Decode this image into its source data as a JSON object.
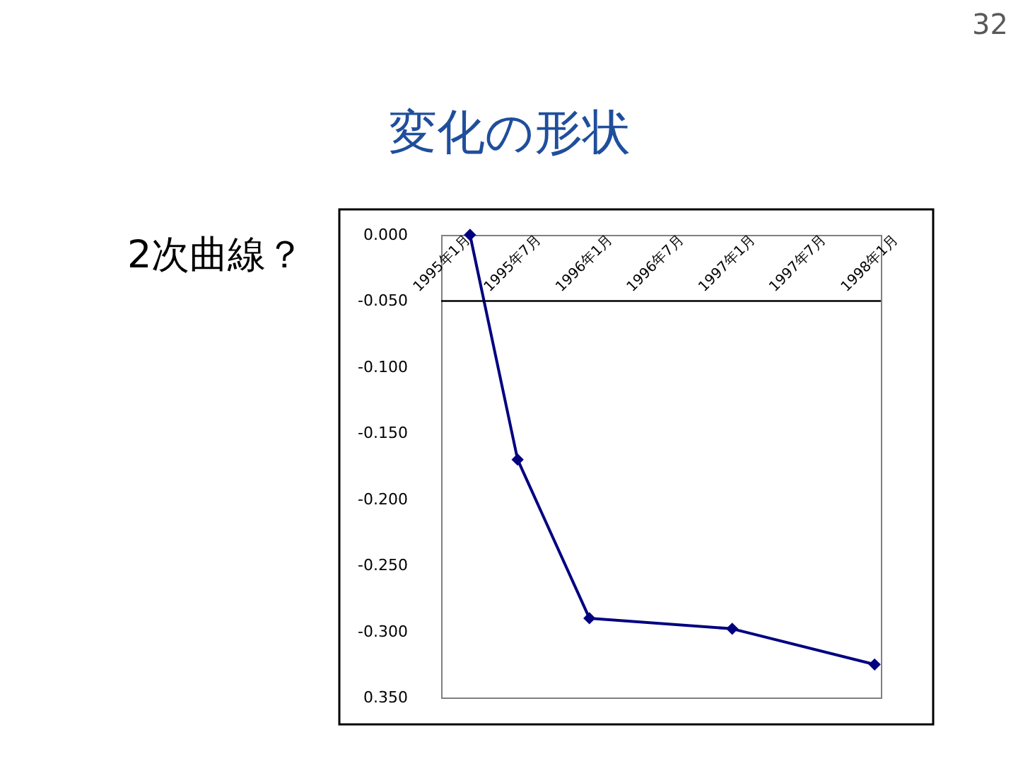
{
  "chart_data": {
    "type": "line",
    "title": "変化の形状",
    "annotations": [
      "2次曲線？",
      "32"
    ],
    "x": [
      "1995-03-16",
      "1995-07-16",
      "1996-01-16",
      "1997-01-16",
      "1998-01-16"
    ],
    "series": [
      {
        "color": "#000080",
        "values": [
          0.0,
          -0.17,
          -0.29,
          -0.298,
          -0.325
        ]
      }
    ],
    "xlim": [
      "1995-01",
      "1998-02"
    ],
    "xticks": [
      {
        "value": "1995-01",
        "label": "1995年1月"
      },
      {
        "value": "1995-07",
        "label": "1995年7月"
      },
      {
        "value": "1996-01",
        "label": "1996年1月"
      },
      {
        "value": "1996-07",
        "label": "1996年7月"
      },
      {
        "value": "1997-01",
        "label": "1997年1月"
      },
      {
        "value": "1997-07",
        "label": "1997年7月"
      },
      {
        "value": "1998-01",
        "label": "1998年1月"
      }
    ],
    "ylim": [
      -0.35,
      0
    ],
    "yticks": [
      {
        "value": 0,
        "label": "0.000"
      },
      {
        "value": -0.05,
        "label": "-0.050"
      },
      {
        "value": -0.1,
        "label": "-0.100"
      },
      {
        "value": -0.15,
        "label": "-0.150"
      },
      {
        "value": -0.2,
        "label": "-0.200"
      },
      {
        "value": -0.25,
        "label": "-0.250"
      },
      {
        "value": -0.3,
        "label": "-0.300"
      },
      {
        "value": -0.35,
        "label": "0.350"
      }
    ],
    "ref_lines": [
      {
        "axis": "y",
        "value": -0.05,
        "color": "#000000"
      }
    ],
    "marker": "diamond",
    "line_style": "solid"
  }
}
